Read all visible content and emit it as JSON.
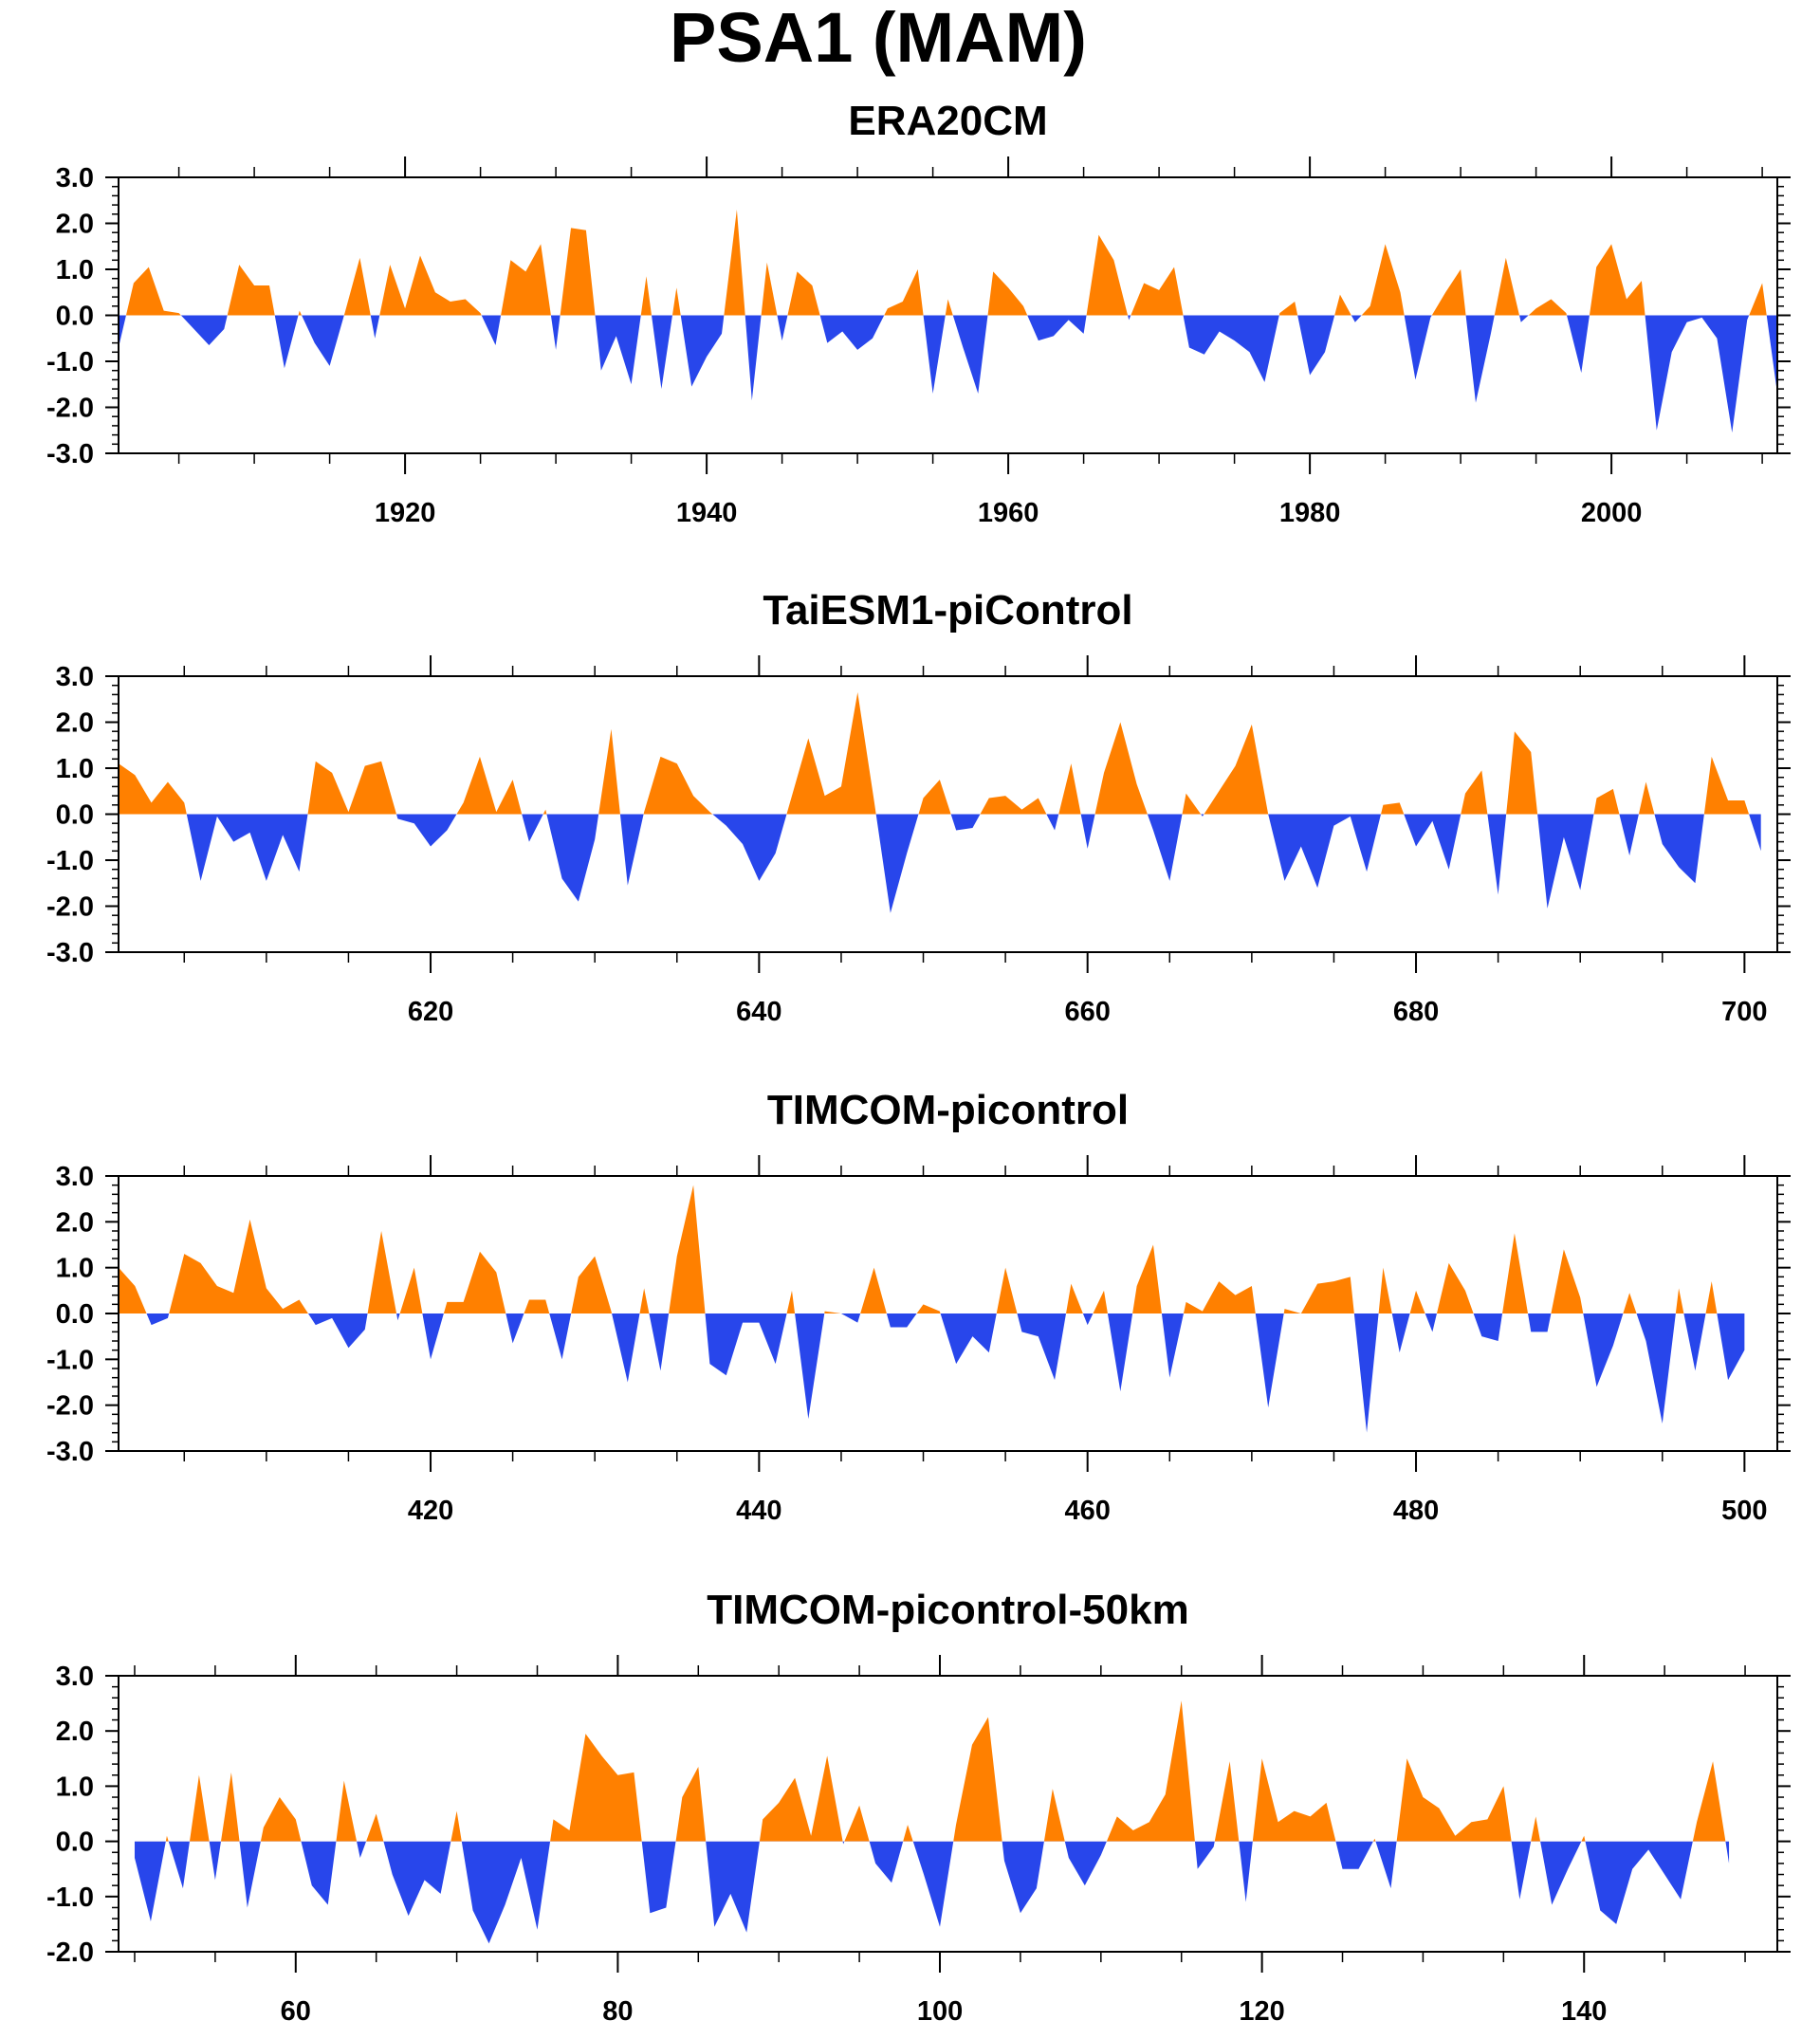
{
  "figure": {
    "title": "PSA1 (MAM)"
  },
  "colors": {
    "positive": "#ff8000",
    "negative": "#2846eb",
    "frame": "#000000",
    "background": "#ffffff"
  },
  "chart_data": [
    {
      "type": "area",
      "title": "ERA20CM",
      "xlabel": "",
      "ylabel": "",
      "xlim": [
        1901,
        2011
      ],
      "ylim": [
        -3.0,
        3.0
      ],
      "yticks": [
        -3.0,
        -2.0,
        -1.0,
        0.0,
        1.0,
        2.0,
        3.0
      ],
      "ytick_labels": [
        "-3.0",
        "-2.0",
        "-1.0",
        "0.0",
        "1.0",
        "2.0",
        "3.0"
      ],
      "xticks": [
        1920,
        1940,
        1960,
        1980,
        2000
      ],
      "xtick_labels": [
        "1920",
        "1940",
        "1960",
        "1980",
        "2000"
      ],
      "grid": false,
      "x_start": 1901,
      "series": [
        {
          "values": [
            -0.7,
            0.7,
            1.05,
            0.1,
            0.05,
            -0.3,
            -0.65,
            -0.3,
            1.1,
            0.65,
            0.65,
            -1.15,
            0.1,
            -0.6,
            -1.1,
            0.05,
            1.25,
            -0.5,
            1.1,
            0.15,
            1.3,
            0.5,
            0.3,
            0.35,
            0.05,
            -0.65,
            1.2,
            0.95,
            1.55,
            -0.75,
            1.9,
            1.85,
            -1.2,
            -0.45,
            -1.5,
            0.85,
            -1.6,
            0.6,
            -1.55,
            -0.9,
            -0.4,
            2.3,
            -1.85,
            1.15,
            -0.55,
            0.95,
            0.65,
            -0.6,
            -0.35,
            -0.75,
            -0.5,
            0.15,
            0.3,
            1.0,
            -1.7,
            0.35,
            -0.7,
            -1.7,
            0.95,
            0.6,
            0.2,
            -0.55,
            -0.45,
            -0.1,
            -0.4,
            1.75,
            1.2,
            -0.1,
            0.7,
            0.55,
            1.05,
            -0.7,
            -0.85,
            -0.35,
            -0.55,
            -0.8,
            -1.45,
            0.05,
            0.3,
            -1.3,
            -0.8,
            0.45,
            -0.15,
            0.2,
            1.55,
            0.5,
            -1.4,
            -0.05,
            0.5,
            1.0,
            -1.9,
            -0.4,
            1.25,
            -0.15,
            0.15,
            0.35,
            0.05,
            -1.25,
            1.05,
            1.55,
            0.35,
            0.75,
            -2.5,
            -0.8,
            -0.15,
            -0.05,
            -0.5,
            -2.55,
            -0.1,
            0.7,
            -1.7
          ]
        }
      ]
    },
    {
      "type": "area",
      "title": "TaiESM1-piControl",
      "xlabel": "",
      "ylabel": "",
      "xlim": [
        601,
        702
      ],
      "ylim": [
        -3.0,
        3.0
      ],
      "yticks": [
        -3.0,
        -2.0,
        -1.0,
        0.0,
        1.0,
        2.0,
        3.0
      ],
      "ytick_labels": [
        "-3.0",
        "-2.0",
        "-1.0",
        "0.0",
        "1.0",
        "2.0",
        "3.0"
      ],
      "xticks": [
        620,
        640,
        660,
        680,
        700
      ],
      "xtick_labels": [
        "620",
        "640",
        "660",
        "680",
        "700"
      ],
      "grid": false,
      "x_start": 601,
      "series": [
        {
          "values": [
            1.1,
            0.85,
            0.25,
            0.7,
            0.25,
            -1.45,
            -0.05,
            -0.6,
            -0.4,
            -1.45,
            -0.45,
            -1.25,
            1.15,
            0.9,
            0.05,
            1.05,
            1.15,
            -0.1,
            -0.2,
            -0.7,
            -0.35,
            0.25,
            1.25,
            0.05,
            0.75,
            -0.6,
            0.1,
            -1.4,
            -1.9,
            -0.55,
            1.85,
            -1.55,
            0.05,
            1.25,
            1.1,
            0.4,
            0.05,
            -0.25,
            -0.65,
            -1.45,
            -0.85,
            0.4,
            1.65,
            0.4,
            0.6,
            2.65,
            0.3,
            -2.15,
            -0.85,
            0.35,
            0.75,
            -0.35,
            -0.3,
            0.35,
            0.4,
            0.1,
            0.35,
            -0.35,
            1.1,
            -0.75,
            0.9,
            2.0,
            0.65,
            -0.35,
            -1.45,
            0.45,
            -0.05,
            0.5,
            1.05,
            1.95,
            0.0,
            -1.45,
            -0.7,
            -1.6,
            -0.25,
            -0.05,
            -1.25,
            0.2,
            0.25,
            -0.7,
            -0.15,
            -1.2,
            0.45,
            0.95,
            -1.75,
            1.8,
            1.35,
            -2.05,
            -0.5,
            -1.65,
            0.35,
            0.55,
            -0.9,
            0.7,
            -0.65,
            -1.15,
            -1.5,
            1.25,
            0.3,
            0.3,
            -0.8
          ]
        }
      ]
    },
    {
      "type": "area",
      "title": "TIMCOM-picontrol",
      "xlabel": "",
      "ylabel": "",
      "xlim": [
        401,
        502
      ],
      "ylim": [
        -3.0,
        3.0
      ],
      "yticks": [
        -3.0,
        -2.0,
        -1.0,
        0.0,
        1.0,
        2.0,
        3.0
      ],
      "ytick_labels": [
        "-3.0",
        "-2.0",
        "-1.0",
        "0.0",
        "1.0",
        "2.0",
        "3.0"
      ],
      "xticks": [
        420,
        440,
        460,
        480,
        500
      ],
      "xtick_labels": [
        "420",
        "440",
        "460",
        "480",
        "500"
      ],
      "grid": false,
      "x_start": 401,
      "series": [
        {
          "values": [
            1.0,
            0.6,
            -0.25,
            -0.1,
            1.3,
            1.1,
            0.6,
            0.45,
            2.05,
            0.55,
            0.1,
            0.3,
            -0.25,
            -0.1,
            -0.75,
            -0.35,
            1.8,
            -0.15,
            1.0,
            -1.0,
            0.25,
            0.25,
            1.35,
            0.9,
            -0.65,
            0.3,
            0.3,
            -1.0,
            0.8,
            1.25,
            0.05,
            -1.5,
            0.55,
            -1.25,
            1.25,
            2.8,
            -1.1,
            -1.35,
            -0.2,
            -0.2,
            -1.1,
            0.5,
            -2.3,
            0.05,
            0.0,
            -0.2,
            1.0,
            -0.3,
            -0.3,
            0.2,
            0.05,
            -1.1,
            -0.5,
            -0.85,
            1.0,
            -0.4,
            -0.5,
            -1.45,
            0.65,
            -0.25,
            0.5,
            -1.7,
            0.6,
            1.5,
            -1.4,
            0.25,
            0.05,
            0.7,
            0.4,
            0.6,
            -2.05,
            0.1,
            0.0,
            0.65,
            0.7,
            0.8,
            -2.6,
            1.0,
            -0.85,
            0.5,
            -0.4,
            1.1,
            0.5,
            -0.5,
            -0.6,
            1.75,
            -0.4,
            -0.4,
            1.4,
            0.35,
            -1.6,
            -0.7,
            0.45,
            -0.6,
            -2.4,
            0.55,
            -1.25,
            0.7,
            -1.45,
            -0.8
          ]
        }
      ]
    },
    {
      "type": "area",
      "title": "TIMCOM-picontrol-50km",
      "xlabel": "",
      "ylabel": "",
      "xlim": [
        49,
        152
      ],
      "ylim": [
        -2.0,
        3.0
      ],
      "yticks": [
        -2.0,
        -1.0,
        0.0,
        1.0,
        2.0,
        3.0
      ],
      "ytick_labels": [
        "-2.0",
        "-1.0",
        "0.0",
        "1.0",
        "2.0",
        "3.0"
      ],
      "xticks": [
        60,
        80,
        100,
        120,
        140
      ],
      "xtick_labels": [
        "60",
        "80",
        "100",
        "120",
        "140"
      ],
      "grid": false,
      "x_start": 50,
      "series": [
        {
          "values": [
            -0.3,
            -1.45,
            0.1,
            -0.85,
            1.2,
            -0.7,
            1.25,
            -1.2,
            0.25,
            0.8,
            0.4,
            -0.8,
            -1.15,
            1.1,
            -0.3,
            0.5,
            -0.6,
            -1.35,
            -0.7,
            -0.95,
            0.55,
            -1.25,
            -1.85,
            -1.15,
            -0.3,
            -1.6,
            0.4,
            0.2,
            1.95,
            1.55,
            1.2,
            1.25,
            -1.3,
            -1.2,
            0.8,
            1.35,
            -1.55,
            -0.95,
            -1.65,
            0.4,
            0.7,
            1.15,
            0.1,
            1.55,
            -0.05,
            0.65,
            -0.4,
            -0.75,
            0.3,
            -0.6,
            -1.55,
            0.3,
            1.75,
            2.25,
            -0.35,
            -1.3,
            -0.85,
            0.95,
            -0.3,
            -0.8,
            -0.25,
            0.45,
            0.2,
            0.35,
            0.85,
            2.55,
            -0.5,
            -0.1,
            1.45,
            -1.1,
            1.5,
            0.35,
            0.55,
            0.45,
            0.7,
            -0.5,
            -0.5,
            0.05,
            -0.85,
            1.5,
            0.8,
            0.6,
            0.1,
            0.35,
            0.4,
            1.0,
            -1.05,
            0.45,
            -1.15,
            -0.5,
            0.1,
            -1.25,
            -1.5,
            -0.5,
            -0.15,
            -0.6,
            -1.05,
            0.35,
            1.45,
            -0.4
          ]
        }
      ]
    }
  ]
}
